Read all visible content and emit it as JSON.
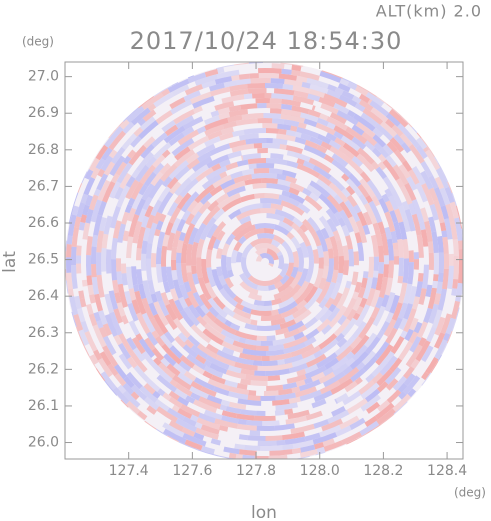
{
  "chart_data": {
    "type": "radar_ppi",
    "altitude_label": "ALT(km) 2.0",
    "title": "2017/10/24 18:54:30",
    "x_label": "lon",
    "y_label": "lat",
    "x_unit": "(deg)",
    "y_unit": "(deg)",
    "xlim": [
      127.2,
      128.45
    ],
    "ylim": [
      25.955,
      27.04
    ],
    "xticks": [
      127.4,
      127.6,
      127.8,
      {
        "value": 128,
        "label": "128.0"
      },
      128.2,
      128.4
    ],
    "yticks": [
      {
        "value": 26,
        "label": "26.0"
      },
      26.1,
      26.2,
      26.3,
      26.4,
      26.5,
      26.6,
      26.7,
      26.8,
      26.9,
      {
        "value": 27,
        "label": "27.0"
      }
    ],
    "colors": [
      "#f3a9a9",
      "#b9b9f3"
    ]
  }
}
